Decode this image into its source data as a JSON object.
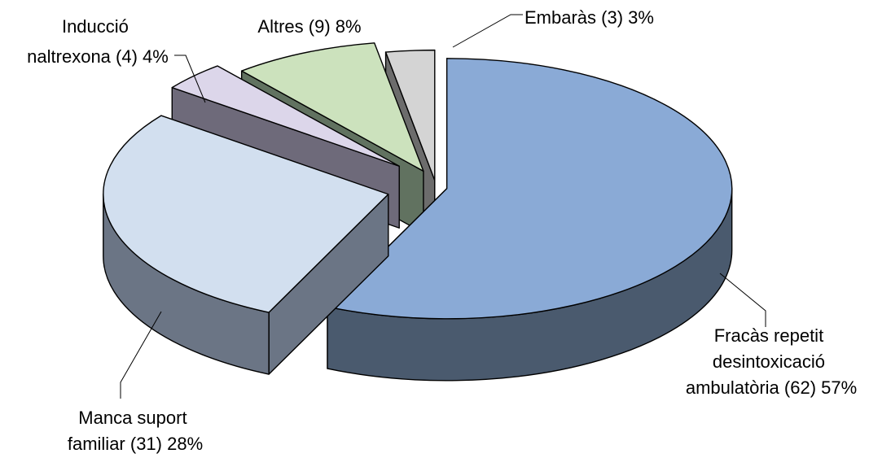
{
  "chart_data": {
    "type": "pie",
    "style": "3d-exploded",
    "title": "",
    "legend": "none",
    "slices": [
      {
        "name": "Fracàs repetit desintoxicació ambulatòria",
        "count": 62,
        "percent": 57,
        "label_lines": [
          "Fracàs repetit",
          "desintoxicació",
          "ambulatòria (62) 57%"
        ],
        "top_color": "#8aaad6",
        "side_color": "#4a5a6e"
      },
      {
        "name": "Manca suport familiar",
        "count": 31,
        "percent": 28,
        "label_lines": [
          "Manca suport",
          "familiar (31) 28%"
        ],
        "top_color": "#d2dfef",
        "side_color": "#6b7585"
      },
      {
        "name": "Inducció naltrexona",
        "count": 4,
        "percent": 4,
        "label_lines": [
          "Inducció",
          "naltrexona (4) 4%"
        ],
        "top_color": "#dcd6ea",
        "side_color": "#6e6a7a"
      },
      {
        "name": "Altres",
        "count": 9,
        "percent": 8,
        "label_lines": [
          "Altres (9) 8%"
        ],
        "top_color": "#cce2bd",
        "side_color": "#617260"
      },
      {
        "name": "Embaràs",
        "count": 3,
        "percent": 3,
        "label_lines": [
          "Embaràs (3) 3%"
        ],
        "top_color": "#d4d4d4",
        "side_color": "#6c6c6c"
      }
    ]
  }
}
